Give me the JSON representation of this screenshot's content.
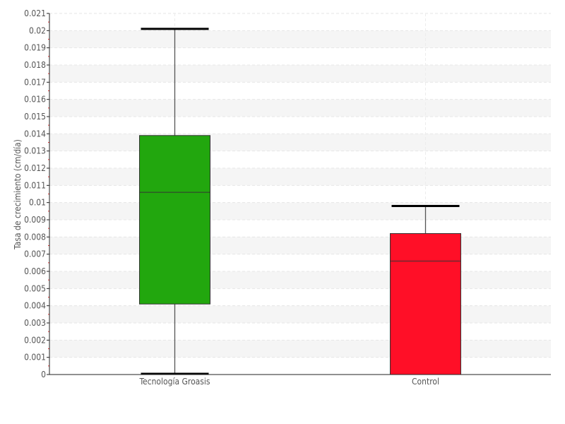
{
  "chart_data": {
    "type": "box",
    "title": "",
    "xlabel": "",
    "ylabel": "Tasa de crecimiento (cm/día)",
    "ylim": [
      0,
      0.021
    ],
    "ytick_step": 0.001,
    "grid": true,
    "categories": [
      "Tecnología Groasis",
      "Control"
    ],
    "boxes": [
      {
        "category": "Tecnología Groasis",
        "min": 0.0,
        "q1": 0.0041,
        "median": 0.0106,
        "q3": 0.0139,
        "max": 0.0201,
        "color": "#22a70e"
      },
      {
        "category": "Control",
        "min": 0.0,
        "q1": 0.0,
        "median": 0.0066,
        "q3": 0.0082,
        "max": 0.0098,
        "color": "#ff0f27"
      }
    ]
  }
}
